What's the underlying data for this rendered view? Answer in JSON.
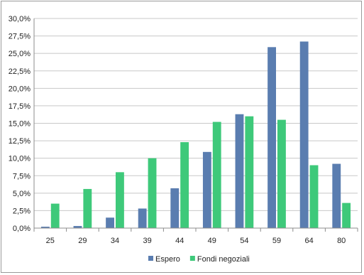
{
  "chart_data": {
    "type": "bar",
    "categories": [
      "25",
      "29",
      "34",
      "39",
      "44",
      "49",
      "54",
      "59",
      "64",
      "80"
    ],
    "series": [
      {
        "name": "Espero",
        "color": "#5a7db0",
        "values": [
          0.2,
          0.3,
          1.5,
          2.8,
          5.7,
          10.9,
          16.3,
          25.9,
          26.7,
          9.2
        ]
      },
      {
        "name": "Fondi negoziali",
        "color": "#3ec97a",
        "values": [
          3.5,
          5.6,
          8.0,
          10.0,
          12.3,
          15.2,
          16.0,
          15.5,
          9.0,
          3.6
        ]
      }
    ],
    "y_tick_labels": [
      "0,0%",
      "2,5%",
      "5,0%",
      "7,5%",
      "10,0%",
      "12,5%",
      "15,0%",
      "17,5%",
      "20,0%",
      "22,5%",
      "25,0%",
      "27,5%",
      "30,0%"
    ],
    "ylim": [
      0,
      30
    ],
    "y_step": 2.5,
    "grid": "horizontal",
    "legend_position": "bottom",
    "title": "",
    "xlabel": "",
    "ylabel": ""
  }
}
